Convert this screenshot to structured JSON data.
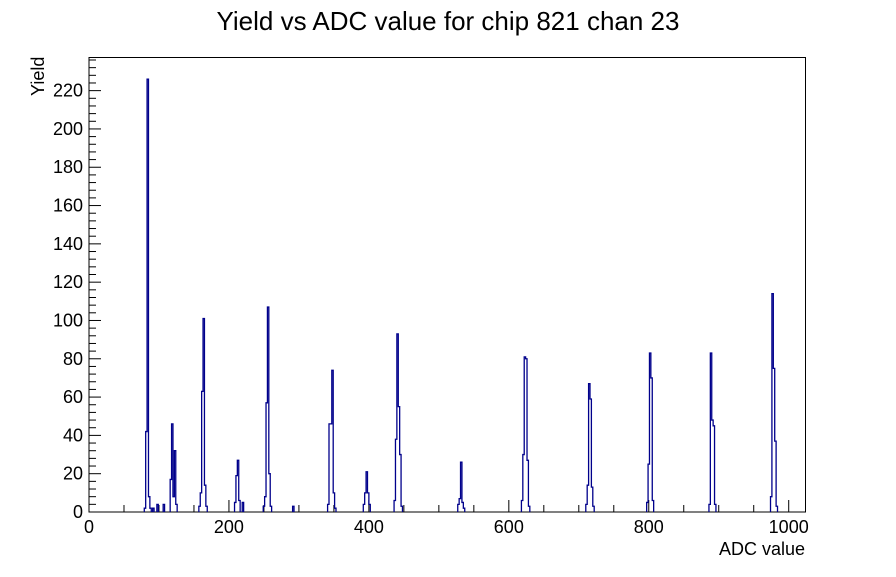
{
  "title": "Yield vs ADC value for chip 821 chan 23",
  "chart_data": {
    "type": "bar",
    "title": "Yield vs ADC value for chip 821 chan 23",
    "xlabel": "ADC value",
    "ylabel": "Yield",
    "xlim": [
      0,
      1024
    ],
    "ylim": [
      0,
      237.3
    ],
    "x_major_step": 200,
    "x_minor_step": 50,
    "x_major_ticks": [
      0,
      200,
      400,
      600,
      800,
      1000
    ],
    "y_major_step": 20,
    "y_minor_step": 4,
    "y_major_ticks": [
      0,
      20,
      40,
      60,
      80,
      100,
      120,
      140,
      160,
      180,
      200,
      220
    ],
    "grid": false,
    "legend": false,
    "line_color": "#00008b",
    "axis_color": "#000000",
    "bin_width": 2,
    "bins": [
      [
        80,
        2
      ],
      [
        82,
        42
      ],
      [
        84,
        226
      ],
      [
        86,
        8
      ],
      [
        88,
        2
      ],
      [
        92,
        2
      ],
      [
        98,
        4
      ],
      [
        107,
        4
      ],
      [
        117,
        17
      ],
      [
        119,
        46
      ],
      [
        121,
        8
      ],
      [
        123,
        32
      ],
      [
        125,
        4
      ],
      [
        158,
        3
      ],
      [
        160,
        10
      ],
      [
        162,
        63
      ],
      [
        164,
        101
      ],
      [
        166,
        14
      ],
      [
        168,
        3
      ],
      [
        209,
        5
      ],
      [
        211,
        19
      ],
      [
        213,
        27
      ],
      [
        215,
        6
      ],
      [
        220,
        5
      ],
      [
        250,
        3
      ],
      [
        252,
        8
      ],
      [
        254,
        57
      ],
      [
        256,
        107
      ],
      [
        258,
        20
      ],
      [
        260,
        3
      ],
      [
        292,
        3
      ],
      [
        342,
        4
      ],
      [
        344,
        46
      ],
      [
        346,
        46
      ],
      [
        348,
        74
      ],
      [
        350,
        10
      ],
      [
        352,
        2
      ],
      [
        393,
        4
      ],
      [
        395,
        10
      ],
      [
        397,
        21
      ],
      [
        399,
        10
      ],
      [
        401,
        4
      ],
      [
        437,
        6
      ],
      [
        439,
        38
      ],
      [
        441,
        93
      ],
      [
        443,
        55
      ],
      [
        445,
        30
      ],
      [
        447,
        3
      ],
      [
        528,
        4
      ],
      [
        530,
        7
      ],
      [
        532,
        26
      ],
      [
        534,
        5
      ],
      [
        536,
        2
      ],
      [
        619,
        6
      ],
      [
        621,
        30
      ],
      [
        623,
        81
      ],
      [
        625,
        80
      ],
      [
        627,
        27
      ],
      [
        629,
        3
      ],
      [
        711,
        4
      ],
      [
        713,
        14
      ],
      [
        715,
        67
      ],
      [
        717,
        59
      ],
      [
        719,
        13
      ],
      [
        721,
        3
      ],
      [
        798,
        5
      ],
      [
        800,
        25
      ],
      [
        802,
        83
      ],
      [
        804,
        70
      ],
      [
        806,
        6
      ],
      [
        887,
        4
      ],
      [
        889,
        83
      ],
      [
        891,
        48
      ],
      [
        893,
        45
      ],
      [
        895,
        4
      ],
      [
        975,
        8
      ],
      [
        977,
        114
      ],
      [
        979,
        75
      ],
      [
        981,
        37
      ],
      [
        983,
        3
      ]
    ]
  }
}
